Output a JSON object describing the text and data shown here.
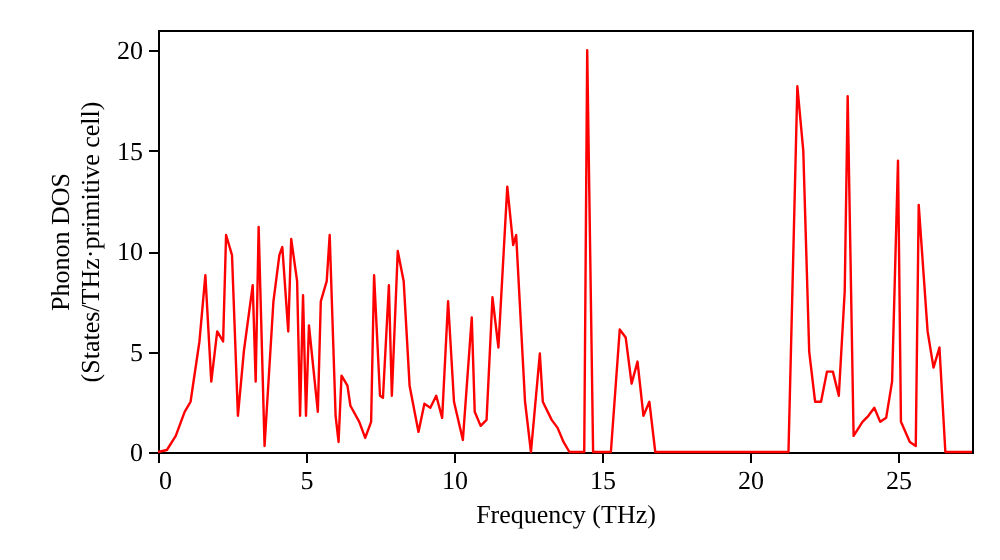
{
  "chart_data": {
    "type": "line",
    "xlabel": "Frequency (THz)",
    "ylabel": "Phonon DOS\n(States/THz·primitive cell)",
    "xlim": [
      0,
      27.5
    ],
    "ylim": [
      0,
      21
    ],
    "xticks": [
      0,
      5,
      10,
      15,
      20,
      25
    ],
    "yticks": [
      0,
      5,
      10,
      15,
      20
    ],
    "grid": false,
    "marker": "none",
    "line_style": "solid",
    "series": [
      {
        "color": "#ff0000",
        "x": [
          0,
          0.3,
          0.6,
          0.9,
          1.1,
          1.4,
          1.6,
          1.8,
          2.0,
          2.2,
          2.3,
          2.5,
          2.7,
          2.9,
          3.2,
          3.3,
          3.4,
          3.6,
          3.9,
          4.1,
          4.2,
          4.4,
          4.5,
          4.7,
          4.8,
          4.9,
          5.0,
          5.1,
          5.4,
          5.5,
          5.7,
          5.8,
          6.0,
          6.1,
          6.2,
          6.4,
          6.5,
          6.8,
          7.0,
          7.2,
          7.3,
          7.5,
          7.6,
          7.8,
          7.9,
          8.1,
          8.3,
          8.5,
          8.8,
          9.0,
          9.2,
          9.4,
          9.6,
          9.8,
          10.0,
          10.3,
          10.6,
          10.7,
          10.9,
          11.1,
          11.3,
          11.5,
          11.8,
          12.0,
          12.1,
          12.4,
          12.6,
          12.9,
          13.0,
          13.3,
          13.5,
          13.7,
          13.9,
          14.4,
          14.5,
          14.7,
          15.3,
          15.6,
          15.8,
          16.0,
          16.2,
          16.4,
          16.6,
          16.8,
          21.3,
          21.6,
          21.8,
          22.0,
          22.2,
          22.4,
          22.6,
          22.8,
          23.0,
          23.2,
          23.3,
          23.5,
          23.8,
          24.0,
          24.2,
          24.4,
          24.6,
          24.8,
          25.0,
          25.1,
          25.4,
          25.6,
          25.7,
          26.0,
          26.2,
          26.4,
          26.6,
          27.5
        ],
        "values": [
          0,
          0.1,
          0.8,
          2,
          2.5,
          5.5,
          8.8,
          3.5,
          6.0,
          5.5,
          10.8,
          9.8,
          1.8,
          5,
          8.3,
          3.5,
          11.2,
          0.3,
          7.5,
          9.8,
          10.2,
          6,
          10.6,
          8.5,
          1.8,
          7.8,
          1.8,
          6.3,
          2,
          7.5,
          8.5,
          10.8,
          1.8,
          0.5,
          3.8,
          3.3,
          2.3,
          1.5,
          0.7,
          1.5,
          8.8,
          2.8,
          2.7,
          8.3,
          2.8,
          10,
          8.5,
          3.3,
          1,
          2.4,
          2.2,
          2.8,
          1.7,
          7.5,
          2.5,
          0.6,
          6.7,
          2.0,
          1.3,
          1.6,
          7.7,
          5.2,
          13.2,
          10.3,
          10.8,
          2.5,
          0,
          4.9,
          2.5,
          1.6,
          1.2,
          0.5,
          0,
          0,
          20,
          0,
          0,
          6.1,
          5.7,
          3.4,
          4.5,
          1.8,
          2.5,
          0,
          0,
          18.2,
          15,
          5,
          2.5,
          2.5,
          4,
          4,
          2.8,
          8,
          17.7,
          0.8,
          1.5,
          1.8,
          2.2,
          1.5,
          1.7,
          3.5,
          14.5,
          1.5,
          0.5,
          0.3,
          12.3,
          6,
          4.2,
          5.2,
          0,
          0
        ]
      }
    ]
  }
}
